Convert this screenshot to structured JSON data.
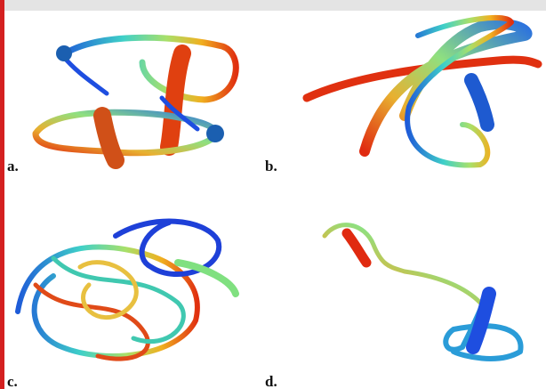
{
  "panels": [
    {
      "label": "a."
    },
    {
      "label": "b."
    },
    {
      "label": "c."
    },
    {
      "label": "d."
    }
  ]
}
